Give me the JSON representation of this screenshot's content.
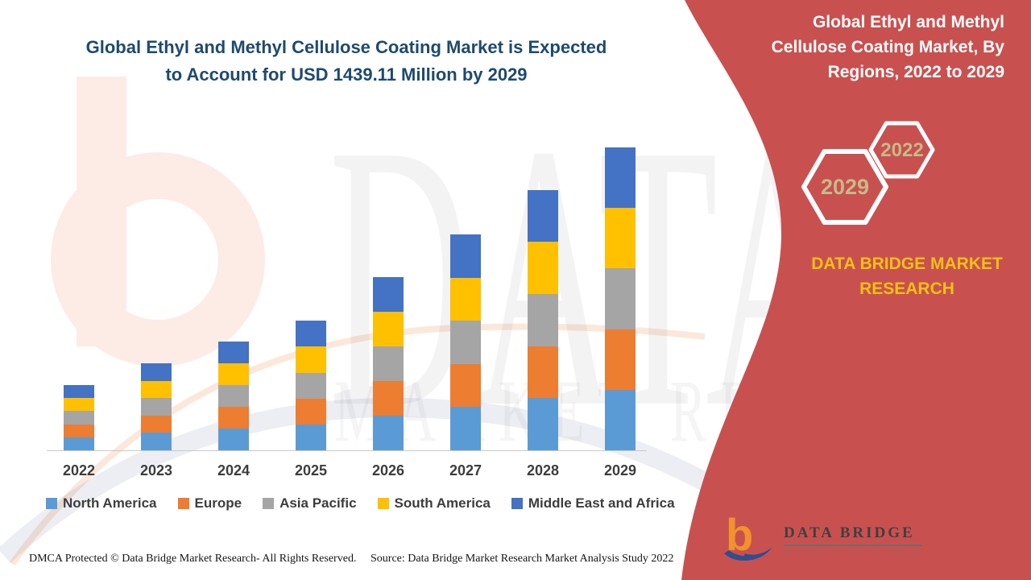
{
  "header": {
    "left_title_line1": "Global Ethyl and Methyl Cellulose Coating Market is Expected",
    "left_title_line2": "to Account for USD 1439.11 Million by 2029"
  },
  "side_panel": {
    "panel_color": "#c85150",
    "title_line1": "Global Ethyl and Methyl",
    "title_line2": "Cellulose Coating Market, By",
    "title_line3": "Regions, 2022 to 2029",
    "hexagon_large_label": "2029",
    "hexagon_small_label": "2022",
    "hexagon_text_color": "#c7b98a",
    "brand_caption": "DATA BRIDGE MARKET RESEARCH",
    "caption_color": "#f2c114"
  },
  "chart_data": {
    "type": "bar",
    "stacked": true,
    "unit": "USD Million",
    "title": "Global Ethyl and Methyl Cellulose Coating Market is Expected to Account for USD 1439.11 Million by 2029",
    "xlabel": "",
    "ylabel": "",
    "categories": [
      "2022",
      "2023",
      "2024",
      "2025",
      "2026",
      "2027",
      "2028",
      "2029"
    ],
    "series": [
      {
        "name": "North America",
        "color": "#5B9BD5",
        "values": [
          62.0,
          82.3,
          103.5,
          122.9,
          164.2,
          204.7,
          247.3,
          287.8
        ]
      },
      {
        "name": "Europe",
        "color": "#ED7D31",
        "values": [
          62.0,
          82.3,
          103.5,
          122.9,
          164.2,
          204.7,
          247.3,
          287.8
        ]
      },
      {
        "name": "Asia Pacific",
        "color": "#A5A5A5",
        "values": [
          62.0,
          82.3,
          103.5,
          122.9,
          164.2,
          204.7,
          247.3,
          287.8
        ]
      },
      {
        "name": "South America",
        "color": "#FFC000",
        "values": [
          62.0,
          82.3,
          103.5,
          122.9,
          164.2,
          204.7,
          247.3,
          287.8
        ]
      },
      {
        "name": "Middle East and Africa",
        "color": "#4472C4",
        "values": [
          62.0,
          82.3,
          103.5,
          122.9,
          164.2,
          204.7,
          247.3,
          287.8
        ]
      }
    ],
    "estimated_totals": [
      310,
      411.5,
      517.4,
      614.6,
      821.1,
      1023.4,
      1236.4,
      1439.11
    ],
    "ylim": [
      0,
      1500
    ],
    "grid": false,
    "legend_position": "bottom"
  },
  "watermark": {
    "line1": "DATA BRIDGE",
    "line2": "MARKET RESEARCH"
  },
  "footer": {
    "dmca": "DMCA Protected © Data Bridge Market Research- All Rights Reserved.",
    "source": "Source: Data Bridge Market Research Market Analysis Study 2022"
  },
  "logo": {
    "title": "DATA BRIDGE",
    "subtitle": "MARKET RESEARCH"
  }
}
